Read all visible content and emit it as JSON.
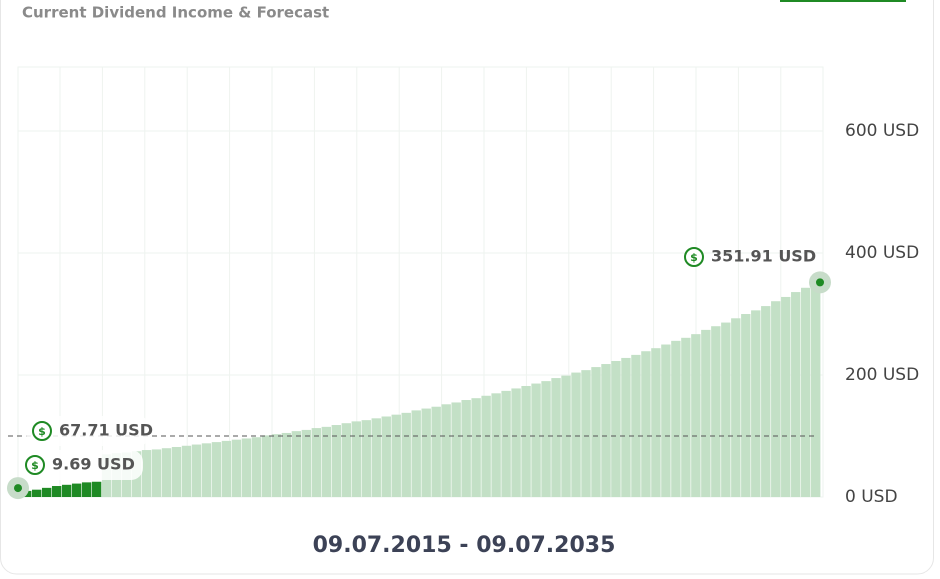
{
  "chart_data": {
    "type": "bar",
    "title": "Current Dividend Income & Forecast",
    "x_label": "09.07.2015 - 09.07.2035",
    "ylim": [
      0,
      705
    ],
    "yticks": [
      {
        "value": 0,
        "label": "0 USD"
      },
      {
        "value": 200,
        "label": "200 USD"
      },
      {
        "value": 400,
        "label": "400 USD"
      },
      {
        "value": 600,
        "label": "600 USD"
      }
    ],
    "grid": true,
    "series": [
      {
        "color": "#1f8a24",
        "values": [
          10,
          12,
          15,
          18,
          20,
          22,
          24,
          25,
          null,
          null,
          null,
          null,
          null,
          null,
          null,
          null,
          null,
          null,
          null,
          null,
          null,
          null,
          null,
          null,
          null,
          null,
          null,
          null,
          null,
          null,
          null,
          null,
          null,
          null,
          null,
          null,
          null,
          null,
          null,
          null,
          null,
          null,
          null,
          null,
          null,
          null,
          null,
          null,
          null,
          null,
          null,
          null,
          null,
          null,
          null,
          null,
          null,
          null,
          null,
          null,
          null,
          null,
          null,
          null,
          null,
          null,
          null,
          null,
          null,
          null,
          null,
          null,
          null,
          null,
          null,
          null,
          null,
          null,
          null,
          null
        ]
      },
      {
        "color": "#c3e0c6",
        "values": [
          null,
          null,
          null,
          null,
          null,
          null,
          null,
          null,
          70,
          72,
          73,
          75,
          77,
          78,
          80,
          82,
          84,
          86,
          88,
          90,
          92,
          94,
          96,
          98,
          101,
          103,
          105,
          108,
          110,
          113,
          115,
          118,
          121,
          124,
          126,
          129,
          132,
          135,
          138,
          142,
          145,
          148,
          152,
          155,
          159,
          162,
          166,
          170,
          174,
          178,
          182,
          186,
          190,
          195,
          199,
          204,
          208,
          213,
          218,
          223,
          228,
          233,
          239,
          244,
          250,
          256,
          261,
          267,
          274,
          280,
          286,
          293,
          300,
          306,
          313,
          321,
          328,
          336,
          343,
          351.91
        ]
      }
    ],
    "reference_line": 100,
    "annotations": [
      {
        "value": 351.91,
        "label": "351.91 USD"
      },
      {
        "value": 67.71,
        "label": "67.71 USD"
      },
      {
        "value": 9.69,
        "label": "9.69 USD"
      }
    ]
  }
}
